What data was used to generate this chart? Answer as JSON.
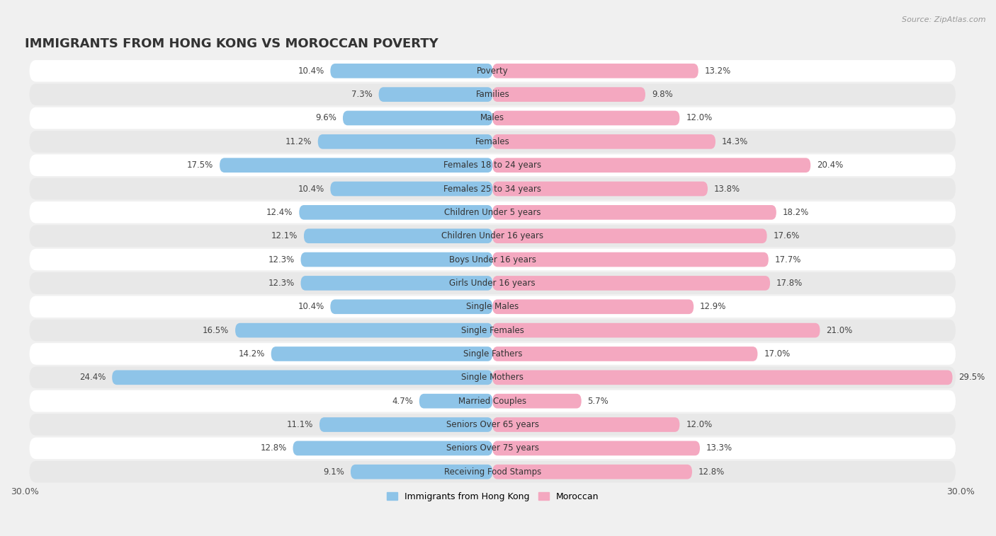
{
  "title": "IMMIGRANTS FROM HONG KONG VS MOROCCAN POVERTY",
  "source": "Source: ZipAtlas.com",
  "categories": [
    "Poverty",
    "Families",
    "Males",
    "Females",
    "Females 18 to 24 years",
    "Females 25 to 34 years",
    "Children Under 5 years",
    "Children Under 16 years",
    "Boys Under 16 years",
    "Girls Under 16 years",
    "Single Males",
    "Single Females",
    "Single Fathers",
    "Single Mothers",
    "Married Couples",
    "Seniors Over 65 years",
    "Seniors Over 75 years",
    "Receiving Food Stamps"
  ],
  "hk_values": [
    10.4,
    7.3,
    9.6,
    11.2,
    17.5,
    10.4,
    12.4,
    12.1,
    12.3,
    12.3,
    10.4,
    16.5,
    14.2,
    24.4,
    4.7,
    11.1,
    12.8,
    9.1
  ],
  "moroccan_values": [
    13.2,
    9.8,
    12.0,
    14.3,
    20.4,
    13.8,
    18.2,
    17.6,
    17.7,
    17.8,
    12.9,
    21.0,
    17.0,
    29.5,
    5.7,
    12.0,
    13.3,
    12.8
  ],
  "hk_color": "#8ec4e8",
  "moroccan_color": "#f4a8c0",
  "hk_label": "Immigrants from Hong Kong",
  "moroccan_label": "Moroccan",
  "xlim": 30.0,
  "bar_height": 0.62,
  "background_color": "#f0f0f0",
  "row_even_color": "#ffffff",
  "row_odd_color": "#e8e8e8",
  "label_fontsize": 8.5,
  "value_fontsize": 8.5,
  "title_fontsize": 13,
  "axis_label_fontsize": 9
}
